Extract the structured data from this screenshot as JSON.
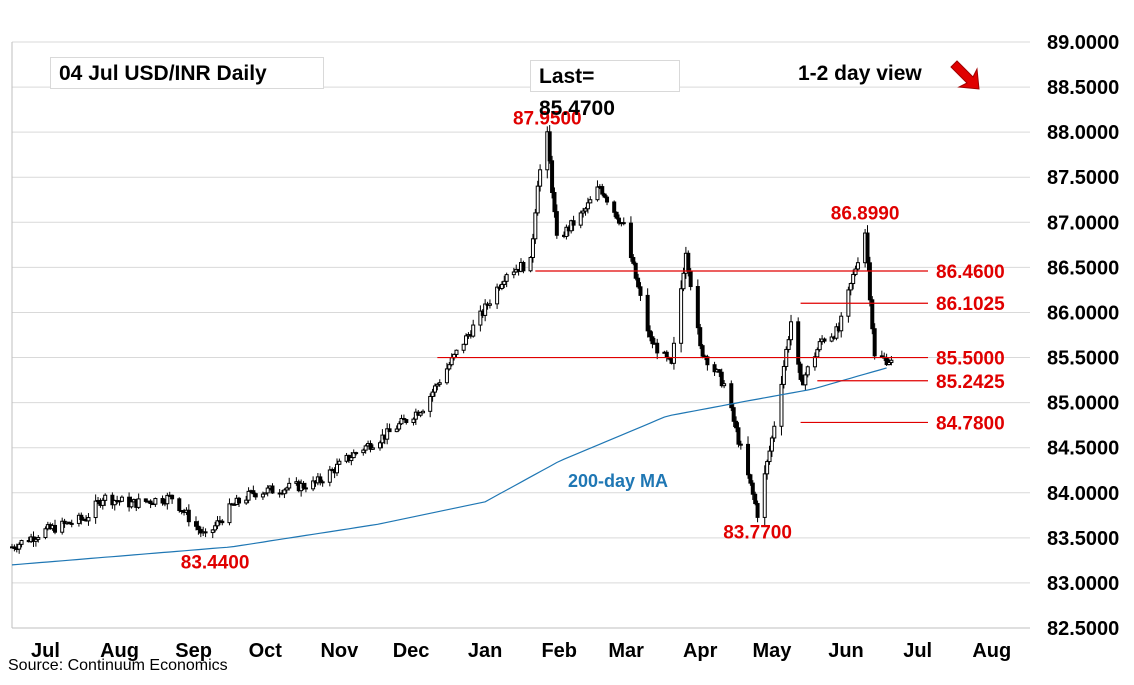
{
  "header": {
    "title": "04 Jul  USD/INR  Daily",
    "last": "Last= 85.4700",
    "view": "1-2 day view",
    "source": "Source: Continuum Economics"
  },
  "colors": {
    "grid": "#d9d9d9",
    "candle": "#000000",
    "ma": "#1f77b4",
    "annotation": "#e00000",
    "arrow": "#e00000"
  },
  "chart_data": {
    "type": "candlestick",
    "title": "04 Jul  USD/INR  Daily",
    "ylim": [
      82.5,
      89.0
    ],
    "yticks": [
      "82.5000",
      "83.0000",
      "83.5000",
      "84.0000",
      "84.5000",
      "85.0000",
      "85.5000",
      "86.0000",
      "86.5000",
      "87.0000",
      "87.5000",
      "88.0000",
      "88.5000",
      "89.0000"
    ],
    "x_months": [
      "Jul",
      "Aug",
      "Sep",
      "Oct",
      "Nov",
      "Dec",
      "Jan",
      "Feb",
      "Mar",
      "Apr",
      "May",
      "Jun",
      "Jul",
      "Aug"
    ],
    "grid": true,
    "price_path": [
      [
        "2024-07-01",
        83.4
      ],
      [
        "2024-07-15",
        83.58
      ],
      [
        "2024-08-01",
        83.72
      ],
      [
        "2024-08-08",
        83.95
      ],
      [
        "2024-08-20",
        83.88
      ],
      [
        "2024-09-06",
        83.95
      ],
      [
        "2024-09-20",
        83.5
      ],
      [
        "2024-10-01",
        83.85
      ],
      [
        "2024-10-10",
        84.0
      ],
      [
        "2024-11-05",
        84.1
      ],
      [
        "2024-11-22",
        84.45
      ],
      [
        "2024-12-05",
        84.65
      ],
      [
        "2024-12-20",
        84.95
      ],
      [
        "2025-01-03",
        85.55
      ],
      [
        "2025-01-14",
        86.0
      ],
      [
        "2025-01-24",
        86.45
      ],
      [
        "2025-02-03",
        86.55
      ],
      [
        "2025-02-06",
        87.45
      ],
      [
        "2025-02-10",
        87.95
      ],
      [
        "2025-02-14",
        86.8
      ],
      [
        "2025-02-25",
        87.1
      ],
      [
        "2025-03-04",
        87.4
      ],
      [
        "2025-03-14",
        86.95
      ],
      [
        "2025-03-25",
        85.7
      ],
      [
        "2025-04-03",
        85.4
      ],
      [
        "2025-04-09",
        86.7
      ],
      [
        "2025-04-15",
        85.6
      ],
      [
        "2025-04-25",
        85.2
      ],
      [
        "2025-05-09",
        83.77
      ],
      [
        "2025-05-15",
        84.6
      ],
      [
        "2025-05-23",
        85.9
      ],
      [
        "2025-05-27",
        85.2
      ],
      [
        "2025-06-05",
        85.7
      ],
      [
        "2025-06-12",
        85.8
      ],
      [
        "2025-06-20",
        86.6
      ],
      [
        "2025-06-23",
        86.899
      ],
      [
        "2025-06-27",
        85.5
      ],
      [
        "2025-07-04",
        85.47
      ]
    ],
    "ma_path": [
      [
        "2024-07-01",
        83.2
      ],
      [
        "2024-10-01",
        83.4
      ],
      [
        "2024-12-01",
        83.65
      ],
      [
        "2025-01-15",
        83.9
      ],
      [
        "2025-02-15",
        84.35
      ],
      [
        "2025-04-01",
        84.85
      ],
      [
        "2025-05-01",
        85.0
      ],
      [
        "2025-06-01",
        85.15
      ],
      [
        "2025-07-04",
        85.4
      ]
    ],
    "ma_label": "200-day MA",
    "levels": [
      {
        "label": "86.4600",
        "value": 86.46,
        "from": "2025-02-05"
      },
      {
        "label": "86.1025",
        "value": 86.1025,
        "from": "2025-05-27"
      },
      {
        "label": "85.5000",
        "value": 85.5,
        "from": "2024-12-26"
      },
      {
        "label": "85.2425",
        "value": 85.2425,
        "from": "2025-06-03"
      },
      {
        "label": "84.7800",
        "value": 84.78,
        "from": "2025-05-27"
      }
    ],
    "annotations": [
      {
        "label": "87.9500",
        "date": "2025-02-10",
        "value": 87.95,
        "pos": "above"
      },
      {
        "label": "86.8990",
        "date": "2025-06-23",
        "value": 86.899,
        "pos": "above"
      },
      {
        "label": "83.7700",
        "date": "2025-05-09",
        "value": 83.77,
        "pos": "below"
      },
      {
        "label": "83.4400",
        "date": "2024-09-24",
        "value": 83.44,
        "pos": "below"
      }
    ],
    "trend": "down"
  }
}
